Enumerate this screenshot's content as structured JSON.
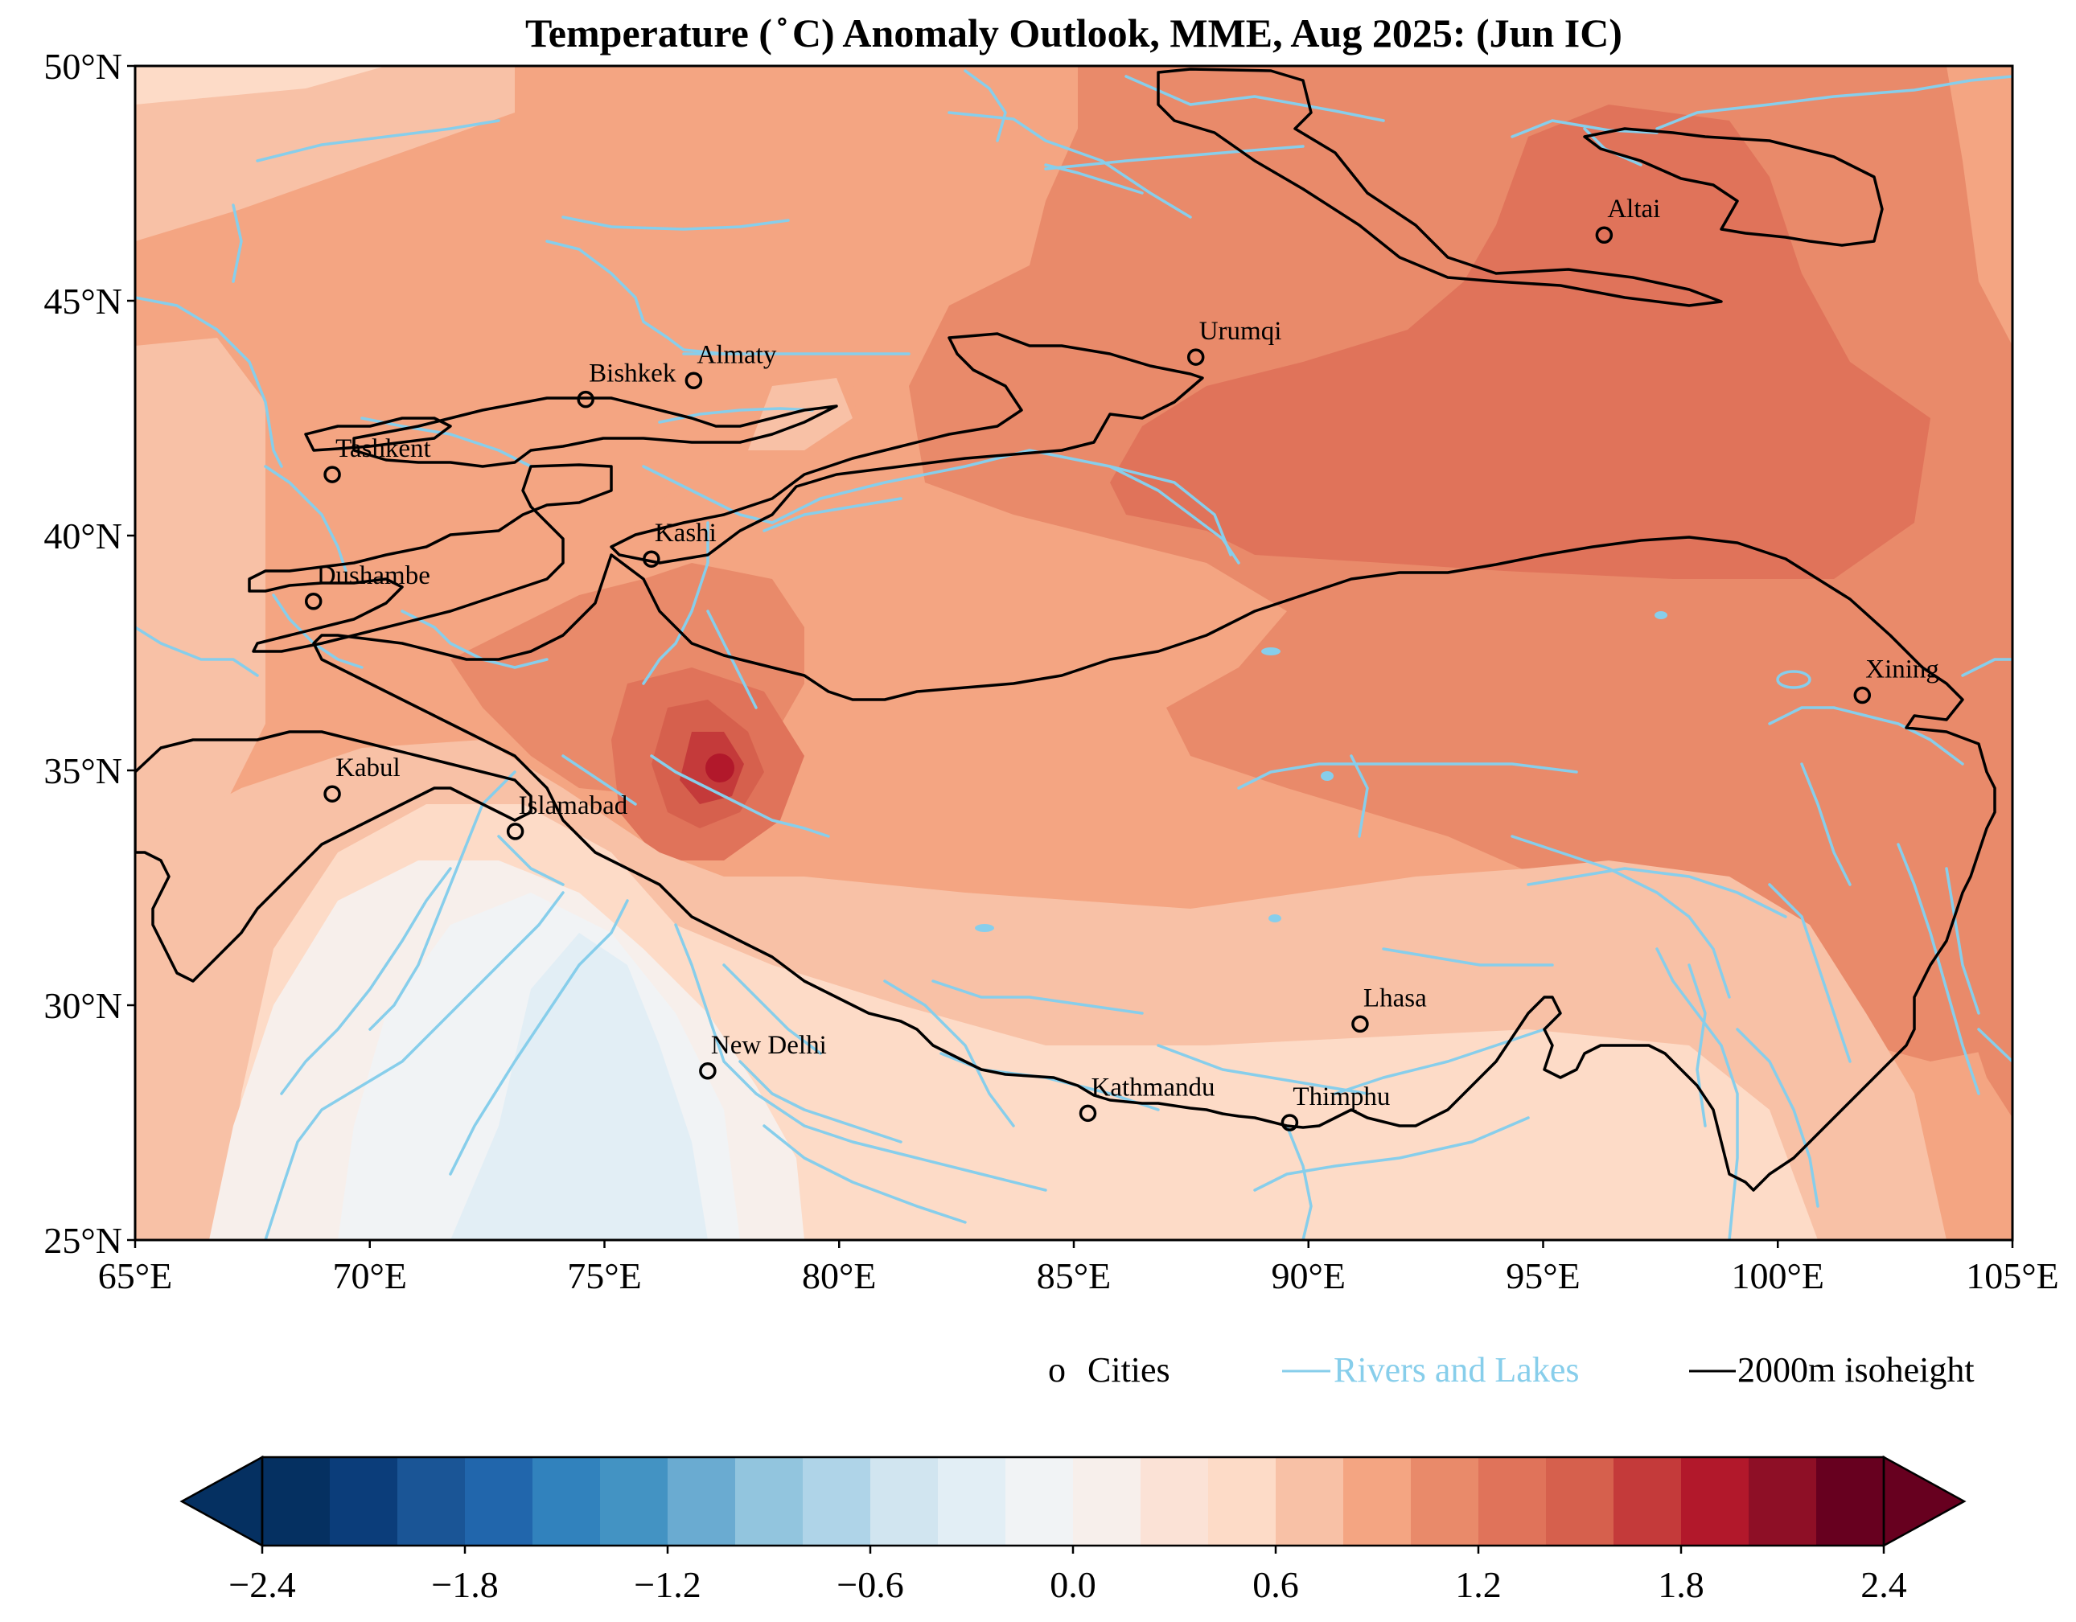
{
  "title": "Temperature ( ̊ C) Anomaly Outlook, MME, Aug  2025:  (Jun IC)",
  "axes": {
    "lon_range": [
      65,
      105
    ],
    "lat_range": [
      25,
      50
    ],
    "x_ticks": [
      "65°E",
      "70°E",
      "75°E",
      "80°E",
      "85°E",
      "90°E",
      "95°E",
      "100°E",
      "105°E"
    ],
    "y_ticks": [
      "25°N",
      "30°N",
      "35°N",
      "40°N",
      "45°N",
      "50°N"
    ]
  },
  "cities": [
    {
      "name": "Altai",
      "lon": 96.3,
      "lat": 46.4
    },
    {
      "name": "Urumqi",
      "lon": 87.6,
      "lat": 43.8
    },
    {
      "name": "Almaty",
      "lon": 76.9,
      "lat": 43.3
    },
    {
      "name": "Bishkek",
      "lon": 74.6,
      "lat": 42.9
    },
    {
      "name": "Tashkent",
      "lon": 69.2,
      "lat": 41.3
    },
    {
      "name": "Kashi",
      "lon": 76.0,
      "lat": 39.5
    },
    {
      "name": "Dushambe",
      "lon": 68.8,
      "lat": 38.6
    },
    {
      "name": "Xining",
      "lon": 101.8,
      "lat": 36.6
    },
    {
      "name": "Kabul",
      "lon": 69.2,
      "lat": 34.5
    },
    {
      "name": "Islamabad",
      "lon": 73.1,
      "lat": 33.7
    },
    {
      "name": "Lhasa",
      "lon": 91.1,
      "lat": 29.6
    },
    {
      "name": "New Delhi",
      "lon": 77.2,
      "lat": 28.6
    },
    {
      "name": "Kathmandu",
      "lon": 85.3,
      "lat": 27.7
    },
    {
      "name": "Thimphu",
      "lon": 89.6,
      "lat": 27.5
    }
  ],
  "legend": {
    "items": [
      {
        "marker": "o",
        "label": "Cities"
      },
      {
        "label": "Rivers and Lakes",
        "color": "#87ceeb"
      },
      {
        "label": "2000m isoheight",
        "color": "#000000"
      }
    ]
  },
  "colorbar": {
    "levels": [
      -2.4,
      -2.2,
      -2.0,
      -1.8,
      -1.6,
      -1.4,
      -1.2,
      -1.0,
      -0.8,
      -0.6,
      -0.4,
      -0.2,
      0.0,
      0.2,
      0.4,
      0.6,
      0.8,
      1.0,
      1.2,
      1.4,
      1.6,
      1.8,
      2.0,
      2.2,
      2.4
    ],
    "colors": [
      "#053061",
      "#0b3d7a",
      "#1a5596",
      "#2166ac",
      "#3182bd",
      "#4393c3",
      "#6aabd1",
      "#92c5de",
      "#afd4e8",
      "#d1e5f0",
      "#e2eef5",
      "#f1f3f5",
      "#f7efeb",
      "#fbe2d6",
      "#fddbc7",
      "#f8c1a6",
      "#f4a582",
      "#e98a6a",
      "#e0735a",
      "#d6604d",
      "#c43a3a",
      "#b2182b",
      "#8e0f26",
      "#67001f"
    ],
    "under_color": "#053061",
    "over_color": "#67001f",
    "tick_labels": [
      "−2.4",
      "−1.8",
      "−1.2",
      "−0.6",
      "0.0",
      "0.6",
      "1.2",
      "1.8",
      "2.4"
    ],
    "tick_values": [
      -2.4,
      -1.8,
      -1.2,
      -0.6,
      0.0,
      0.6,
      1.2,
      1.8,
      2.4
    ]
  }
}
